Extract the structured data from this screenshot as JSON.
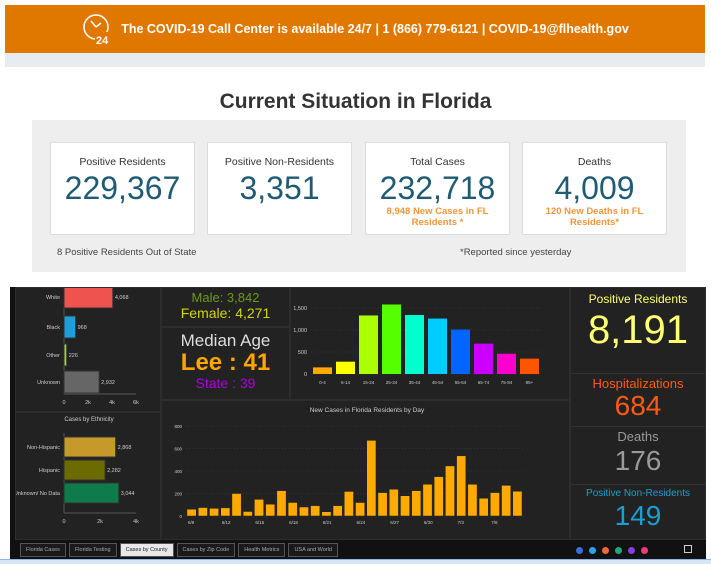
{
  "banner": {
    "text": "The COVID-19 Call Center is available 24/7 | 1 (866) 779-6121 | COVID-19@flhealth.gov",
    "icon": "clock-24-icon",
    "icon_text": "24"
  },
  "title": "Current Situation in Florida",
  "cards": [
    {
      "label": "Positive Residents",
      "value": "229,367"
    },
    {
      "label": "Positive Non-Residents",
      "value": "3,351"
    },
    {
      "label": "Total Cases",
      "value": "232,718",
      "sub": "8,948 New Cases in FL Residents *"
    },
    {
      "label": "Deaths",
      "value": "4,009",
      "sub": "120 New Deaths in FL Residents*"
    }
  ],
  "notes": {
    "left": "8 Positive Residents Out of State",
    "right": "*Reported since yesterday"
  },
  "gender": {
    "male": "Male: 3,842",
    "female": "Female: 4,271"
  },
  "median_age": {
    "label": "Median Age",
    "county": "Lee : 41",
    "state": "State : 39"
  },
  "stats": [
    {
      "label": "Positive Residents",
      "value": "8,191",
      "color": "#ffff73"
    },
    {
      "label": "Hospitalizations",
      "value": "684",
      "color": "#ff5a14"
    },
    {
      "label": "Deaths",
      "value": "176",
      "color": "#9a9a9a"
    },
    {
      "label": "Positive Non-Residents",
      "value": "149",
      "color": "#1a9fd0"
    }
  ],
  "tabs": [
    "Florida Cases",
    "Florida Testing",
    "Cases by County",
    "Cases by Zip Code",
    "Health Metrics",
    "USA and World"
  ],
  "active_tab": "Cases by County",
  "social_icons": [
    {
      "name": "facebook-icon",
      "color": "#3b6fd6"
    },
    {
      "name": "twitter-icon",
      "color": "#2aa3e8"
    },
    {
      "name": "google-icon",
      "color": "#ef6a3a"
    },
    {
      "name": "share-icon",
      "color": "#27a57a"
    },
    {
      "name": "email-icon",
      "color": "#8a3ce0"
    },
    {
      "name": "link-icon",
      "color": "#ee3b7a"
    }
  ],
  "chart_data": [
    {
      "type": "bar",
      "orientation": "horizontal",
      "categories": [
        "White",
        "Black",
        "Other",
        "Unknown"
      ],
      "values": [
        4068,
        968,
        226,
        2932
      ],
      "labels": [
        "4,068",
        "968",
        "226",
        "2,932"
      ],
      "ticks": [
        "0",
        "2k",
        "4k",
        "6k"
      ],
      "xlim": [
        0,
        6000
      ],
      "colors": [
        "#ef5350",
        "#1e9fd8",
        "#a6d22a",
        "#666666"
      ]
    },
    {
      "type": "bar",
      "orientation": "horizontal",
      "title": "Cases by Ethnicity",
      "categories": [
        "Non-Hispanic",
        "Hispanic",
        "Unknown/ No Data"
      ],
      "values": [
        2868,
        2282,
        3044
      ],
      "labels": [
        "2,868",
        "2,282",
        "3,044"
      ],
      "ticks": [
        "0",
        "2k",
        "4k"
      ],
      "xlim": [
        0,
        4000
      ],
      "colors": [
        "#c59a2a",
        "#6b6b00",
        "#0f7a4a"
      ]
    },
    {
      "type": "bar",
      "categories": [
        "0-4",
        "5-14",
        "15-24",
        "25-34",
        "35-44",
        "45-54",
        "55-64",
        "65-74",
        "75-84",
        "85+"
      ],
      "values": [
        150,
        280,
        1330,
        1580,
        1340,
        1260,
        1010,
        690,
        460,
        350
      ],
      "ticks": [
        "0",
        "500",
        "1,000",
        "1,500"
      ],
      "ylim": [
        0,
        1800
      ],
      "colors": [
        "#ffaa00",
        "#ffff00",
        "#aaff00",
        "#55ff00",
        "#00ffcc",
        "#00ccff",
        "#0066ff",
        "#cc00ff",
        "#ff00cc",
        "#ff5500"
      ]
    },
    {
      "type": "bar",
      "title": "New Cases in Florida Residents by Day",
      "categories": [
        "6/9",
        "6/10",
        "6/11",
        "6/12",
        "6/13",
        "6/14",
        "6/15",
        "6/16",
        "6/17",
        "6/18",
        "6/19",
        "6/20",
        "6/21",
        "6/22",
        "6/23",
        "6/24",
        "6/25",
        "6/26",
        "6/27",
        "6/28",
        "6/29",
        "6/30",
        "7/1",
        "7/2",
        "7/3",
        "7/4",
        "7/5",
        "7/6",
        "7/7",
        "7/8"
      ],
      "values": [
        60,
        75,
        68,
        72,
        200,
        40,
        148,
        105,
        225,
        120,
        80,
        92,
        38,
        92,
        218,
        120,
        672,
        208,
        238,
        180,
        225,
        282,
        350,
        445,
        535,
        282,
        158,
        208,
        272,
        220
      ],
      "tick_labels": [
        "6/9",
        "6/12",
        "6/15",
        "6/18",
        "6/21",
        "6/24",
        "6/27",
        "6/30",
        "7/3",
        "7/6"
      ],
      "yticks": [
        "0",
        "200",
        "400",
        "600",
        "800"
      ],
      "ylim": [
        0,
        800
      ],
      "color": "#ffaa00"
    }
  ]
}
